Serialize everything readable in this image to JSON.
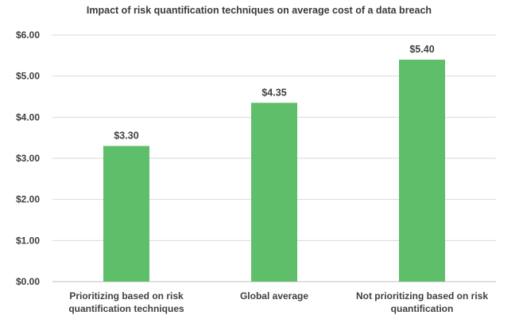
{
  "chart_data": {
    "type": "bar",
    "title": "Impact of risk quantification techniques on average cost of a data breach",
    "categories": [
      [
        "Prioritizing based on risk",
        "quantification techniques"
      ],
      [
        "Global average"
      ],
      [
        "Not prioritizing based on risk",
        "quantification"
      ]
    ],
    "values": [
      3.3,
      4.35,
      5.4
    ],
    "data_labels": [
      "$3.30",
      "$4.35",
      "$5.40"
    ],
    "yticks": [
      "$0.00",
      "$1.00",
      "$2.00",
      "$3.00",
      "$4.00",
      "$5.00",
      "$6.00"
    ],
    "ylim": [
      0,
      6
    ],
    "xlabel": "",
    "ylabel": "",
    "grid": true,
    "bar_color": "#5fbe6a"
  }
}
